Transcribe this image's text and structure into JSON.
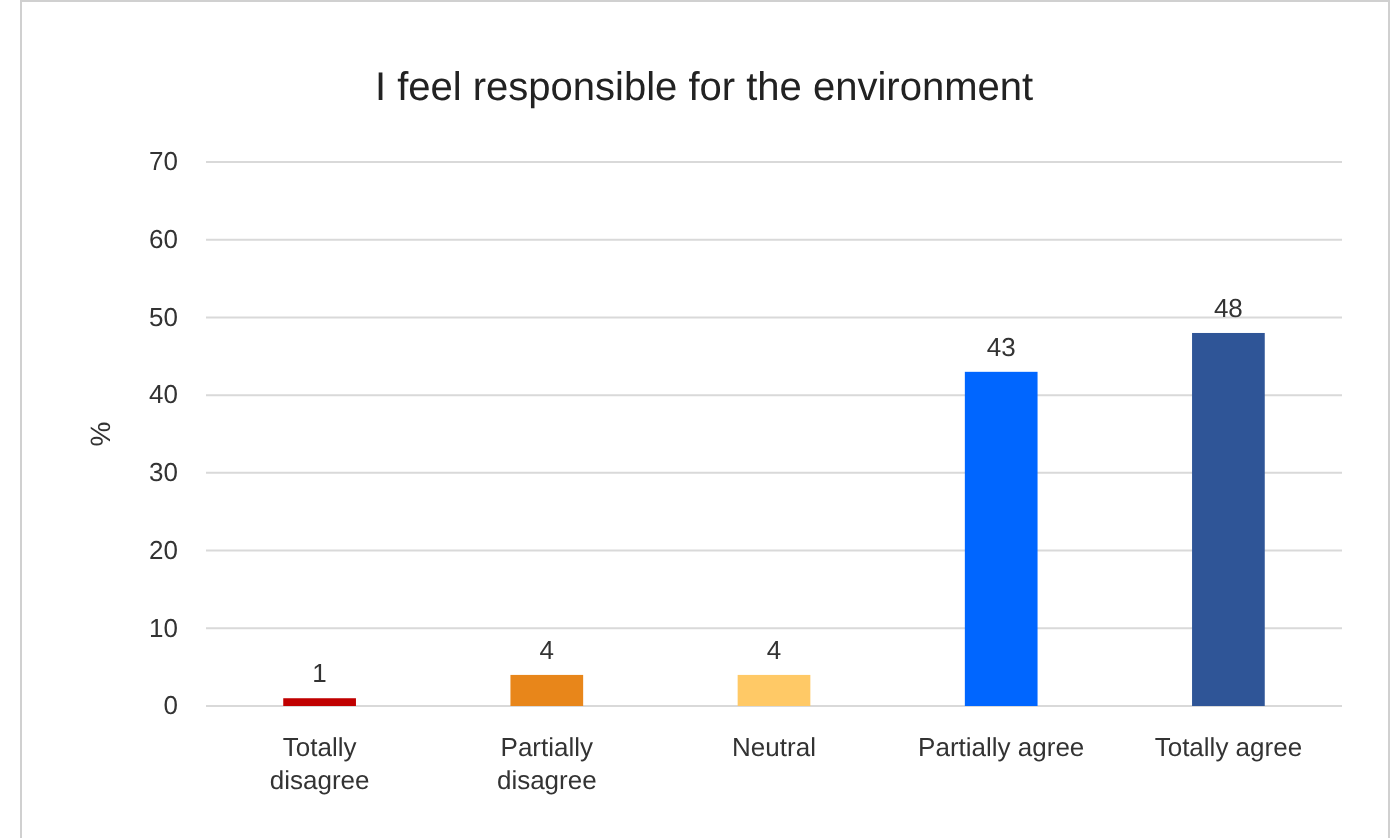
{
  "chart_data": {
    "type": "bar",
    "title": "I feel responsible for the environment",
    "ylabel": "%",
    "categories": [
      "Totally disagree",
      "Partially disagree",
      "Neutral",
      "Partially agree",
      "Totally agree"
    ],
    "values": [
      1,
      4,
      4,
      43,
      48
    ],
    "colors": [
      "#c00000",
      "#e8861a",
      "#ffc966",
      "#0066ff",
      "#2f5597"
    ],
    "ylim": [
      0,
      70
    ],
    "yticks": [
      0,
      10,
      20,
      30,
      40,
      50,
      60,
      70
    ],
    "grid": "y",
    "data_labels": true
  }
}
